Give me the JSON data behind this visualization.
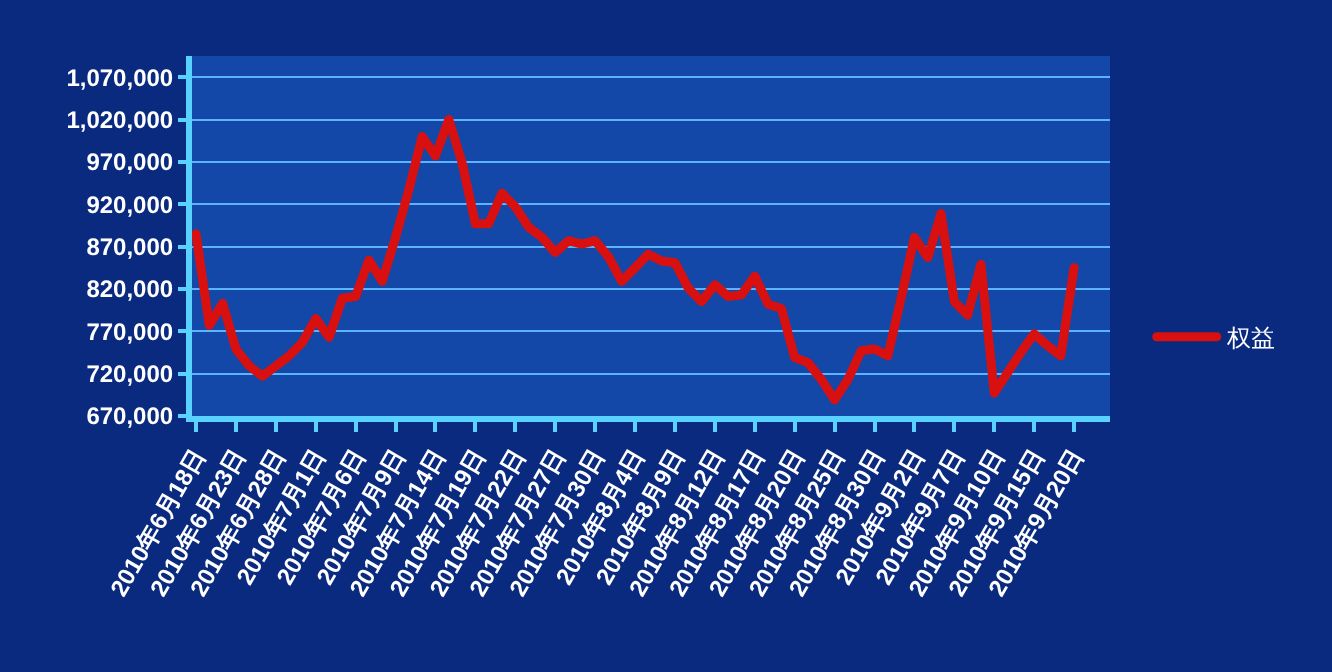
{
  "chart_data": {
    "type": "line",
    "categories": [
      "2010年6月18日",
      null,
      null,
      "2010年6月23日",
      null,
      null,
      "2010年6月28日",
      null,
      null,
      "2010年7月1日",
      null,
      null,
      "2010年7月6日",
      null,
      null,
      "2010年7月9日",
      null,
      null,
      "2010年7月14日",
      null,
      null,
      "2010年7月19日",
      null,
      null,
      "2010年7月22日",
      null,
      null,
      "2010年7月27日",
      null,
      null,
      "2010年7月30日",
      null,
      null,
      "2010年8月4日",
      null,
      null,
      "2010年8月9日",
      null,
      null,
      "2010年8月12日",
      null,
      null,
      "2010年8月17日",
      null,
      null,
      "2010年8月20日",
      null,
      null,
      "2010年8月25日",
      null,
      null,
      "2010年8月30日",
      null,
      null,
      "2010年9月2日",
      null,
      null,
      "2010年9月7日",
      null,
      null,
      "2010年9月10日",
      null,
      null,
      "2010年9月15日",
      null,
      null,
      "2010年9月20日"
    ],
    "series": [
      {
        "name": "权益",
        "color": "#d81010",
        "values": [
          885000,
          777000,
          803000,
          749000,
          729000,
          717000,
          729000,
          741000,
          757000,
          785000,
          763000,
          809000,
          811000,
          854000,
          829000,
          881000,
          937000,
          1000000,
          977000,
          1020000,
          969000,
          897000,
          897000,
          933000,
          917000,
          893000,
          881000,
          863000,
          877000,
          873000,
          877000,
          858000,
          829000,
          845000,
          861000,
          853000,
          851000,
          821000,
          805000,
          825000,
          811000,
          813000,
          835000,
          802000,
          797000,
          739000,
          733000,
          713000,
          689000,
          713000,
          747000,
          749000,
          741000,
          809000,
          881000,
          857000,
          909000,
          805000,
          789000,
          849000,
          697000,
          721000,
          745000,
          767000,
          753000,
          741000,
          845000
        ]
      }
    ],
    "ylim": [
      670000,
      1095000
    ],
    "yticks": [
      {
        "value": 670000,
        "label": "670,000"
      },
      {
        "value": 720000,
        "label": "720,000"
      },
      {
        "value": 770000,
        "label": "770,000"
      },
      {
        "value": 820000,
        "label": "820,000"
      },
      {
        "value": 870000,
        "label": "870,000"
      },
      {
        "value": 920000,
        "label": "920,000"
      },
      {
        "value": 970000,
        "label": "970,000"
      },
      {
        "value": 1020000,
        "label": "1,020,000"
      },
      {
        "value": 1070000,
        "label": "1,070,000"
      }
    ],
    "grid": "y",
    "legend": "right",
    "marker": "none",
    "line_style": "solid"
  }
}
